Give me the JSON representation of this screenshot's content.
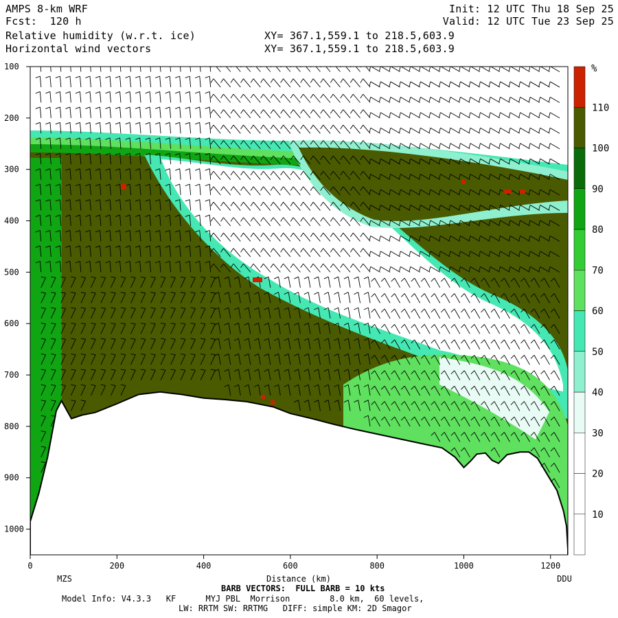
{
  "header": {
    "model": "AMPS 8-km WRF",
    "fcst": "Fcst:  120 h",
    "field1": "Relative humidity (w.r.t. ice)",
    "field2": "Horizontal wind vectors",
    "init": "Init: 12 UTC Thu 18 Sep 25",
    "valid": "Valid: 12 UTC Tue 23 Sep 25",
    "xy1": "XY= 367.1,559.1 to 218.5,603.9",
    "xy2": "XY= 367.1,559.1 to 218.5,603.9"
  },
  "footer": {
    "barb_note": "BARB VECTORS:  FULL BARB = 10 kts",
    "model_info": "Model Info: V4.3.3   KF      MYJ PBL  Morrison        8.0 km,  60 levels,",
    "physics": "LW: RRTM SW: RRTMG   DIFF: simple KM: 2D Smagor"
  },
  "colors": {
    "rh_lt10": "#ffffff",
    "rh_10_20": "#ffffff",
    "rh_20_30": "#ffffff",
    "rh_30_40": "#e8fbf4",
    "rh_40_50": "#8ff0cf",
    "rh_50_60": "#45e8b3",
    "rh_60_70": "#5fe05f",
    "rh_70_80": "#33cc33",
    "rh_80_90": "#10a512",
    "rh_90_100": "#0a6b0a",
    "rh_100_110": "#4a5a00",
    "rh_gt110": "#cc2200",
    "terrain": "#ffffff"
  },
  "chart_data": {
    "type": "heatmap",
    "title": "Relative humidity (w.r.t. ice)",
    "overlay": "Horizontal wind vectors",
    "xlabel": "Distance (km)",
    "ylabel": "",
    "x_range": [
      0,
      1240
    ],
    "y_range_hPa": [
      1050,
      100
    ],
    "x_ticks": [
      0,
      200,
      400,
      600,
      800,
      1000,
      1200
    ],
    "y_ticks": [
      100,
      200,
      300,
      400,
      500,
      600,
      700,
      800,
      900,
      1000
    ],
    "x_end_labels": [
      "MZS",
      "DDU"
    ],
    "colorbar": {
      "unit": "%",
      "levels": [
        10,
        20,
        30,
        40,
        50,
        60,
        70,
        80,
        90,
        100,
        110
      ]
    },
    "terrain_surface_hPa": [
      {
        "x": 0,
        "p": 985
      },
      {
        "x": 20,
        "p": 930
      },
      {
        "x": 40,
        "p": 860
      },
      {
        "x": 60,
        "p": 770
      },
      {
        "x": 72,
        "p": 750
      },
      {
        "x": 85,
        "p": 770
      },
      {
        "x": 95,
        "p": 785
      },
      {
        "x": 120,
        "p": 778
      },
      {
        "x": 150,
        "p": 773
      },
      {
        "x": 200,
        "p": 756
      },
      {
        "x": 250,
        "p": 738
      },
      {
        "x": 300,
        "p": 733
      },
      {
        "x": 350,
        "p": 738
      },
      {
        "x": 400,
        "p": 745
      },
      {
        "x": 450,
        "p": 748
      },
      {
        "x": 500,
        "p": 752
      },
      {
        "x": 560,
        "p": 762
      },
      {
        "x": 600,
        "p": 775
      },
      {
        "x": 650,
        "p": 785
      },
      {
        "x": 700,
        "p": 796
      },
      {
        "x": 750,
        "p": 806
      },
      {
        "x": 800,
        "p": 815
      },
      {
        "x": 850,
        "p": 824
      },
      {
        "x": 900,
        "p": 833
      },
      {
        "x": 950,
        "p": 842
      },
      {
        "x": 980,
        "p": 860
      },
      {
        "x": 1000,
        "p": 880
      },
      {
        "x": 1015,
        "p": 868
      },
      {
        "x": 1030,
        "p": 854
      },
      {
        "x": 1050,
        "p": 852
      },
      {
        "x": 1065,
        "p": 866
      },
      {
        "x": 1080,
        "p": 872
      },
      {
        "x": 1100,
        "p": 855
      },
      {
        "x": 1130,
        "p": 850
      },
      {
        "x": 1150,
        "p": 850
      },
      {
        "x": 1170,
        "p": 862
      },
      {
        "x": 1190,
        "p": 890
      },
      {
        "x": 1215,
        "p": 925
      },
      {
        "x": 1230,
        "p": 965
      },
      {
        "x": 1237,
        "p": 995
      }
    ]
  }
}
